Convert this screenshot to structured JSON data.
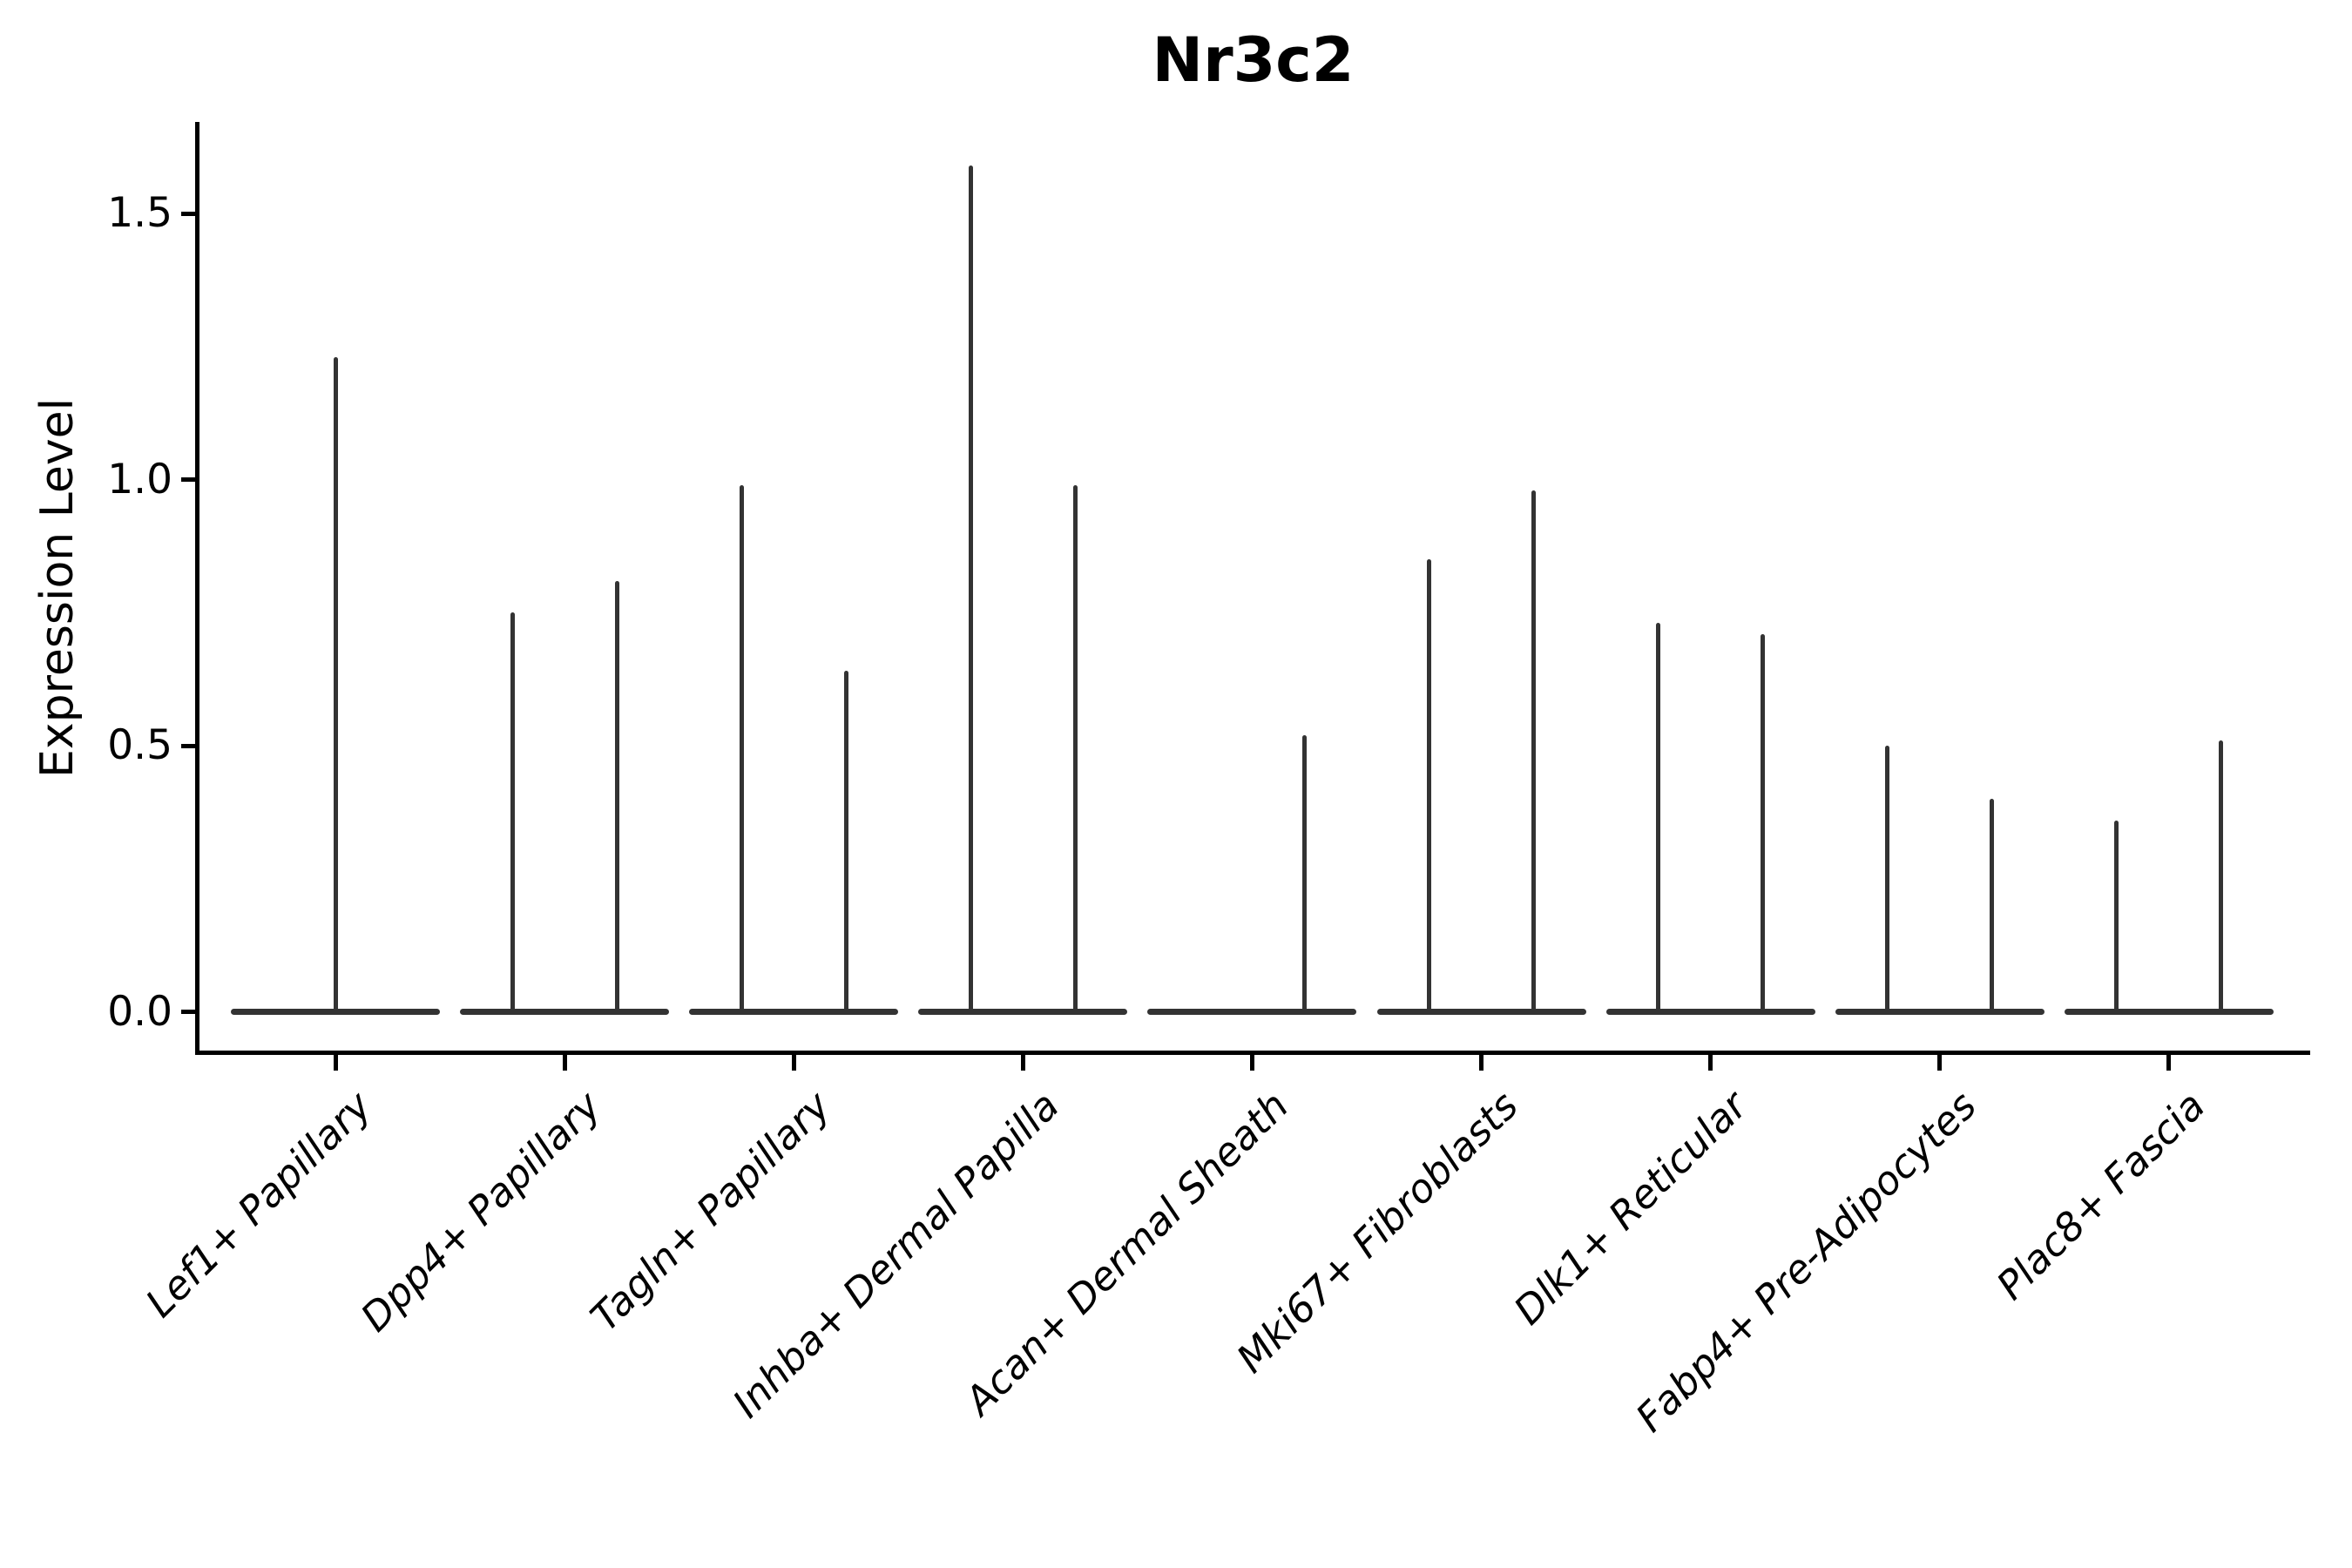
{
  "title": "Nr3c2",
  "axes": {
    "ylabel": "Expression Level",
    "ytick_labels": [
      "0.0",
      "0.5",
      "1.0",
      "1.5"
    ]
  },
  "chart_data": {
    "type": "violin",
    "title": "Nr3c2",
    "xlabel": "",
    "ylabel": "Expression Level",
    "yticks": [
      0.0,
      0.5,
      1.0,
      1.5
    ],
    "ytick_labels": [
      "0.0",
      "0.5",
      "1.0",
      "1.5"
    ],
    "ylim": [
      -0.076,
      1.67
    ],
    "grid": false,
    "legend": "none",
    "background": "#ffffff",
    "categories": [
      "Lef1+ Papillary",
      "Dpp4+ Papillary",
      "Tagln+ Papillary",
      "Inhba+ Dermal Papilla",
      "Acan+ Dermal Sheath",
      "Mki67+ Fibroblasts",
      "Dlk1+ Reticular",
      "Fabp4+ Pre-Adipocytes",
      "Plac8+ Fascia"
    ],
    "description": "Violin plot of Nr3c2 expression; each cell type shows a flat violin body at expression 0 with thin density spikes rising to the maximum expression value.",
    "base_at_zero": true,
    "violins": [
      {
        "category": "Lef1+ Papillary",
        "spikes": [
          {
            "position": "center",
            "max": 1.23
          }
        ]
      },
      {
        "category": "Dpp4+ Papillary",
        "spikes": [
          {
            "position": "left",
            "max": 0.75
          },
          {
            "position": "right",
            "max": 0.81
          }
        ]
      },
      {
        "category": "Tagln+ Papillary",
        "spikes": [
          {
            "position": "left",
            "max": 0.99
          },
          {
            "position": "right",
            "max": 0.64
          }
        ]
      },
      {
        "category": "Inhba+ Dermal Papilla",
        "spikes": [
          {
            "position": "left",
            "max": 1.59
          },
          {
            "position": "right",
            "max": 0.99
          }
        ]
      },
      {
        "category": "Acan+ Dermal Sheath",
        "spikes": [
          {
            "position": "right",
            "max": 0.52
          }
        ]
      },
      {
        "category": "Mki67+ Fibroblasts",
        "spikes": [
          {
            "position": "left",
            "max": 0.85
          },
          {
            "position": "right",
            "max": 0.98
          }
        ]
      },
      {
        "category": "Dlk1+ Reticular",
        "spikes": [
          {
            "position": "left",
            "max": 0.73
          },
          {
            "position": "right",
            "max": 0.71
          }
        ]
      },
      {
        "category": "Fabp4+ Pre-Adipocytes",
        "spikes": [
          {
            "position": "left",
            "max": 0.5
          },
          {
            "position": "right",
            "max": 0.4
          }
        ]
      },
      {
        "category": "Plac8+ Fascia",
        "spikes": [
          {
            "position": "left",
            "max": 0.36
          },
          {
            "position": "right",
            "max": 0.51
          }
        ]
      }
    ],
    "colors": {
      "violin_stroke": "#333333",
      "axis": "#000000",
      "text": "#000000",
      "background": "#ffffff"
    }
  }
}
